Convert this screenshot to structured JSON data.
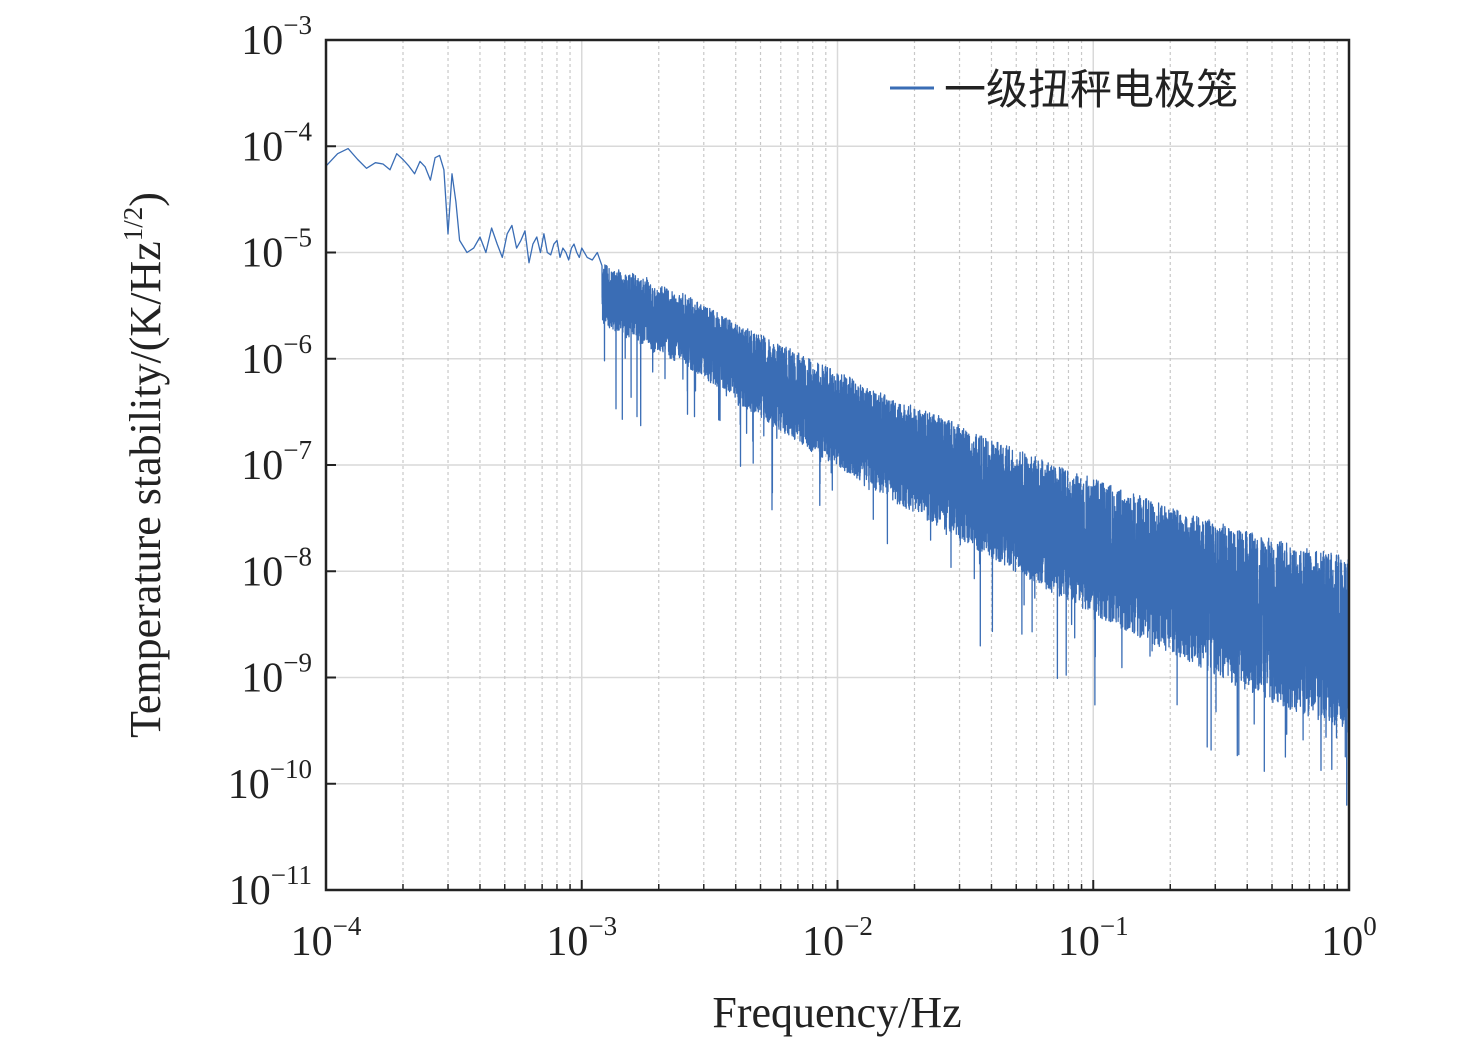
{
  "chart_data": {
    "type": "line",
    "title": "",
    "xlabel": "Frequency/Hz",
    "ylabel": "Temperature stability/(K/Hz",
    "ylabel_sup": "1/2",
    "ylabel_close": ")",
    "x_scale": "log",
    "y_scale": "log",
    "xlim": [
      0.0001,
      1
    ],
    "ylim": [
      1e-11,
      0.001
    ],
    "x_ticks": [
      {
        "base": "10",
        "exp": "−4"
      },
      {
        "base": "10",
        "exp": "−3"
      },
      {
        "base": "10",
        "exp": "−2"
      },
      {
        "base": "10",
        "exp": "−1"
      },
      {
        "base": "10",
        "exp": "0"
      }
    ],
    "y_ticks": [
      {
        "base": "10",
        "exp": "−3"
      },
      {
        "base": "10",
        "exp": "−4"
      },
      {
        "base": "10",
        "exp": "−5"
      },
      {
        "base": "10",
        "exp": "−6"
      },
      {
        "base": "10",
        "exp": "−7"
      },
      {
        "base": "10",
        "exp": "−8"
      },
      {
        "base": "10",
        "exp": "−9"
      },
      {
        "base": "10",
        "exp": "−10"
      },
      {
        "base": "10",
        "exp": "−11"
      }
    ],
    "grid": true,
    "legend_position": "top-right",
    "series": [
      {
        "name": "一级扭秤电极笼",
        "color": "#3a6db5",
        "x": [
          0.0001,
          0.000111,
          0.000122,
          0.000133,
          0.000144,
          0.000156,
          0.000167,
          0.000178,
          0.000189,
          0.0002,
          0.000211,
          0.000222,
          0.000233,
          0.000244,
          0.000256,
          0.000267,
          0.000278,
          0.000289,
          0.0003,
          0.000311,
          0.000322,
          0.000333,
          0.000356,
          0.000378,
          0.0004,
          0.000422,
          0.000444,
          0.000467,
          0.000489,
          0.000511,
          0.000533,
          0.000556,
          0.000578,
          0.0006,
          0.000622,
          0.000644,
          0.000667,
          0.000689,
          0.000711,
          0.000733,
          0.000756,
          0.000778,
          0.0008,
          0.000822,
          0.000844,
          0.000867,
          0.000889,
          0.000911,
          0.000933,
          0.000956,
          0.000978,
          0.001,
          0.00105,
          0.0011,
          0.00115,
          0.0012,
          0.00125,
          0.0013,
          0.0014,
          0.0015,
          0.0016,
          0.0017,
          0.0018,
          0.0019,
          0.002,
          0.0022,
          0.0024,
          0.0026,
          0.0028,
          0.003,
          0.0032,
          0.0034,
          0.0036,
          0.0038,
          0.004,
          0.0045,
          0.005,
          0.0055,
          0.006,
          0.0065,
          0.007,
          0.0075,
          0.008,
          0.009,
          0.01,
          0.011,
          0.012,
          0.013,
          0.014,
          0.015,
          0.017,
          0.019,
          0.021,
          0.023,
          0.025,
          0.028,
          0.031,
          0.034,
          0.037,
          0.04,
          0.045,
          0.05,
          0.055,
          0.06,
          0.065,
          0.07,
          0.08,
          0.09,
          0.1,
          0.11,
          0.12,
          0.13,
          0.14,
          0.15,
          0.17,
          0.19,
          0.21,
          0.23,
          0.25,
          0.28,
          0.31,
          0.34,
          0.37,
          0.4,
          0.45,
          0.5,
          0.55,
          0.6,
          0.65,
          0.7,
          0.75,
          0.8,
          0.85,
          0.9,
          0.95,
          1.0
        ],
        "y": [
          6.5e-05,
          8.5e-05,
          9.5e-05,
          7.5e-05,
          6.2e-05,
          7e-05,
          6.8e-05,
          6e-05,
          8.5e-05,
          7.5e-05,
          6.5e-05,
          5.5e-05,
          7.2e-05,
          6.4e-05,
          4.8e-05,
          7.8e-05,
          8.2e-05,
          6e-05,
          1.5e-05,
          5.5e-05,
          3e-05,
          1.3e-05,
          1e-05,
          1.1e-05,
          1.4e-05,
          1e-05,
          1.7e-05,
          1.2e-05,
          9e-06,
          1.5e-05,
          1.8e-05,
          1.1e-05,
          1.3e-05,
          1.6e-05,
          8e-06,
          1.2e-05,
          1.4e-05,
          1e-05,
          1.5e-05,
          1e-05,
          9.5e-06,
          1.2e-05,
          1.3e-05,
          9e-06,
          1.1e-05,
          1e-05,
          8.5e-06,
          1.1e-05,
          1.2e-05,
          1e-05,
          9e-06,
          1.1e-05,
          9e-06,
          8.5e-06,
          1e-05,
          7.5e-06,
          8e-06,
          6.5e-06,
          7e-06,
          6e-06,
          6.5e-06,
          5.5e-06,
          6e-06,
          4.8e-06,
          5e-06,
          4.5e-06,
          4.2e-06,
          4e-06,
          3.5e-06,
          3.2e-06,
          3e-06,
          2.7e-06,
          2.5e-06,
          2.3e-06,
          2.1e-06,
          1.9e-06,
          1.7e-06,
          1.5e-06,
          1.35e-06,
          1.25e-06,
          1.15e-06,
          1.05e-06,
          9.5e-07,
          8.5e-07,
          7.5e-07,
          6.8e-07,
          6.2e-07,
          5.6e-07,
          5.2e-07,
          4.8e-07,
          4.2e-07,
          3.8e-07,
          3.4e-07,
          3.1e-07,
          2.9e-07,
          2.6e-07,
          2.3e-07,
          2.1e-07,
          1.9e-07,
          1.75e-07,
          1.55e-07,
          1.4e-07,
          1.3e-07,
          1.2e-07,
          1.1e-07,
          1e-07,
          9e-08,
          8.2e-08,
          7.5e-08,
          6.8e-08,
          6.3e-08,
          5.9e-08,
          5.5e-08,
          5.2e-08,
          4.7e-08,
          4.3e-08,
          4e-08,
          3.7e-08,
          3.5e-08,
          3.2e-08,
          2.9e-08,
          2.7e-08,
          2.5e-08,
          2.4e-08,
          2.2e-08,
          2e-08,
          1.9e-08,
          1.8e-08,
          1.7e-08,
          1.65e-08,
          1.6e-08,
          1.55e-08,
          1.5e-08,
          1.45e-08,
          1.4e-08,
          1.35e-08
        ]
      }
    ]
  }
}
